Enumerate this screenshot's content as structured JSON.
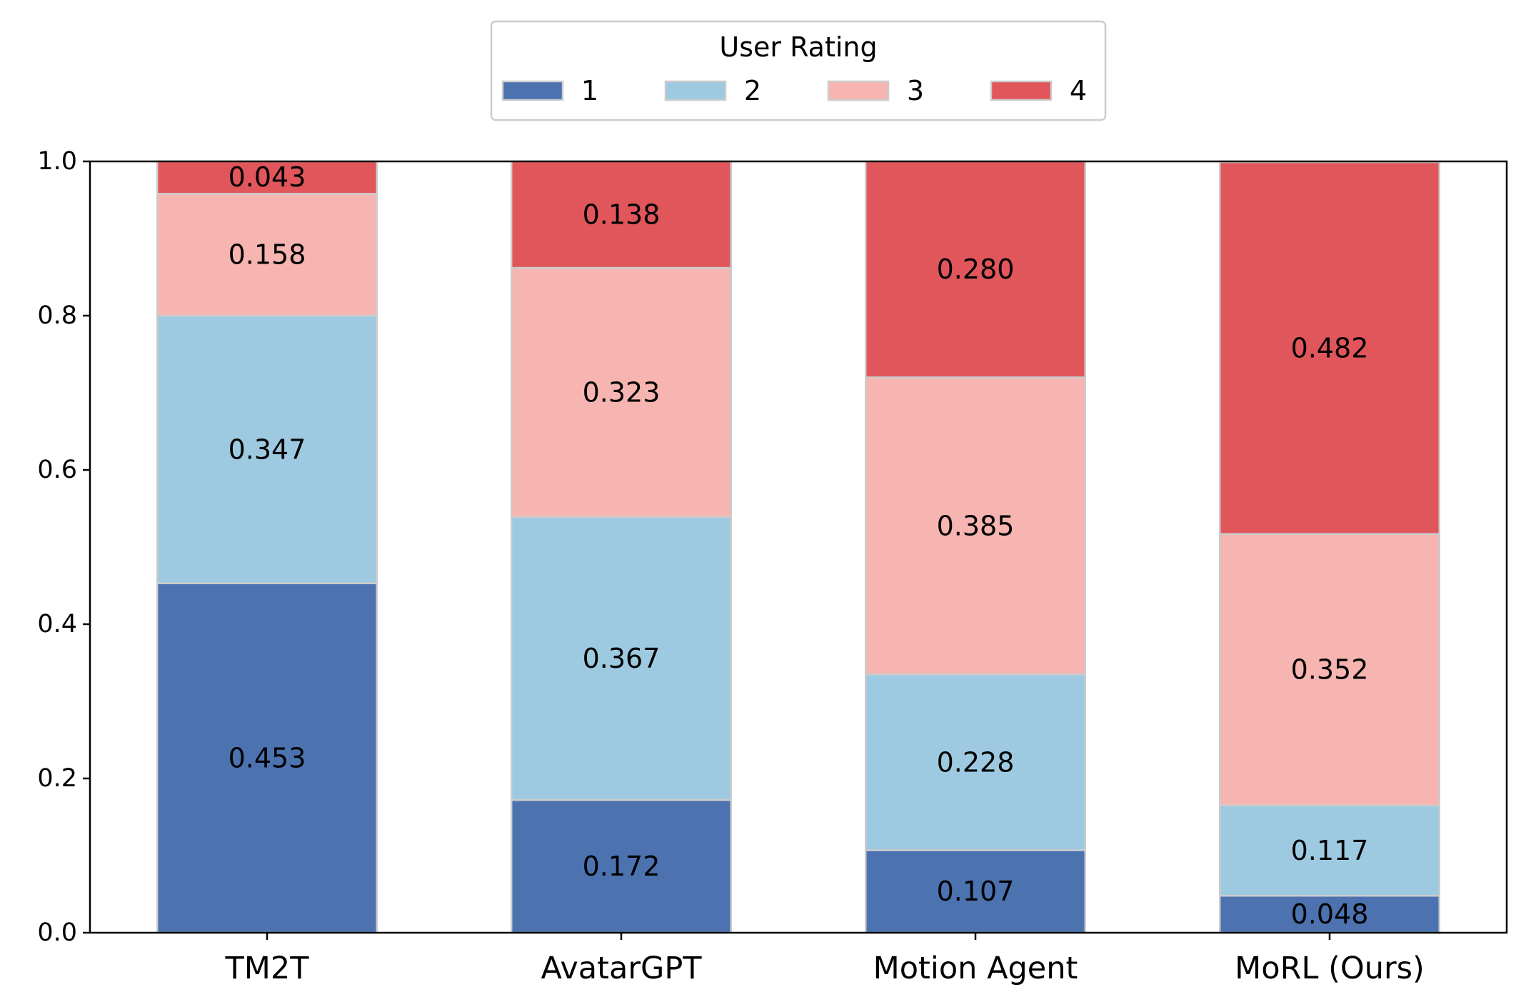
{
  "chart_data": {
    "type": "bar",
    "stacked": true,
    "categories": [
      "TM2T",
      "AvatarGPT",
      "Motion Agent",
      "MoRL (Ours)"
    ],
    "series": [
      {
        "name": "1",
        "color": "#4c72b0",
        "values": [
          0.453,
          0.172,
          0.107,
          0.048
        ]
      },
      {
        "name": "2",
        "color": "#9ecae1",
        "values": [
          0.347,
          0.367,
          0.228,
          0.117
        ]
      },
      {
        "name": "3",
        "color": "#f6b5b1",
        "values": [
          0.158,
          0.323,
          0.385,
          0.352
        ]
      },
      {
        "name": "4",
        "color": "#e0565b",
        "values": [
          0.043,
          0.138,
          0.28,
          0.482
        ]
      }
    ],
    "data_labels": [
      [
        "0.453",
        "0.172",
        "0.107",
        "0.048"
      ],
      [
        "0.347",
        "0.367",
        "0.228",
        "0.117"
      ],
      [
        "0.158",
        "0.323",
        "0.385",
        "0.352"
      ],
      [
        "0.043",
        "0.138",
        "0.280",
        "0.482"
      ]
    ],
    "ylim": [
      0.0,
      1.0
    ],
    "yticks": [
      0.0,
      0.2,
      0.4,
      0.6,
      0.8,
      1.0
    ],
    "ytick_labels": [
      "0.0",
      "0.2",
      "0.4",
      "0.6",
      "0.8",
      "1.0"
    ],
    "xlabel": "",
    "ylabel": "",
    "grid": false,
    "legend": {
      "title": "User Rating",
      "placement": "top-center",
      "entries": [
        "1",
        "2",
        "3",
        "4"
      ]
    },
    "bar_edge_color": "#cccccc",
    "axis_color": "#000000"
  }
}
